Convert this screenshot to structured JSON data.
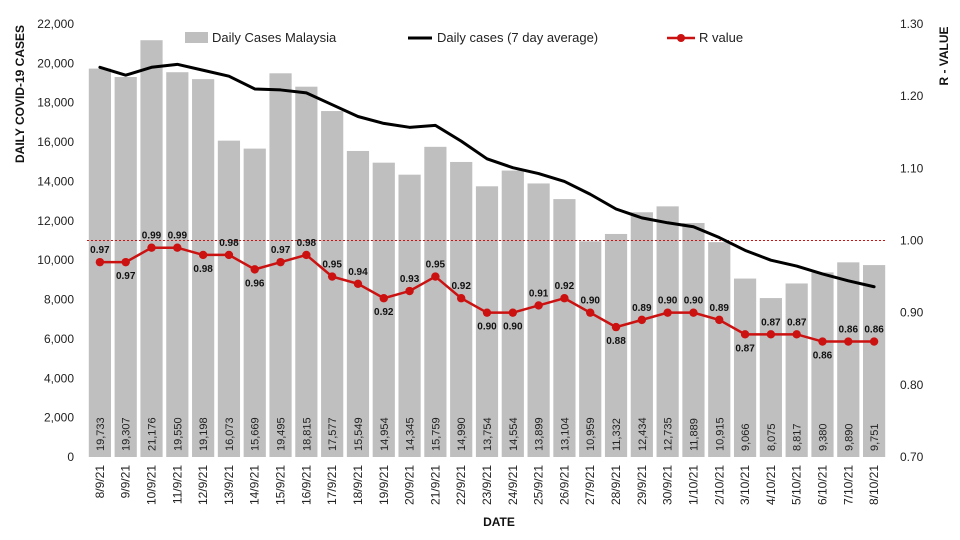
{
  "chart_data": {
    "type": "bar",
    "xlabel": "DATE",
    "ylabel": "DAILY COVID-19 CASES",
    "y2label": "R - VALUE",
    "ylim": [
      0,
      22000
    ],
    "y2lim": [
      0.7,
      1.3
    ],
    "y_ticks": [
      "0",
      "2,000",
      "4,000",
      "6,000",
      "8,000",
      "10,000",
      "12,000",
      "14,000",
      "16,000",
      "18,000",
      "20,000",
      "22,000"
    ],
    "y2_ticks": [
      "0.70",
      "0.80",
      "0.90",
      "1.00",
      "1.10",
      "1.20",
      "1.30"
    ],
    "reference_line": 1.0,
    "legend_position": "top",
    "categories": [
      "8/9/21",
      "9/9/21",
      "10/9/21",
      "11/9/21",
      "12/9/21",
      "13/9/21",
      "14/9/21",
      "15/9/21",
      "16/9/21",
      "17/9/21",
      "18/9/21",
      "19/9/21",
      "20/9/21",
      "21/9/21",
      "22/9/21",
      "23/9/21",
      "24/9/21",
      "25/9/21",
      "26/9/21",
      "27/9/21",
      "28/9/21",
      "29/9/21",
      "30/9/21",
      "1/10/21",
      "2/10/21",
      "3/10/21",
      "4/10/21",
      "5/10/21",
      "6/10/21",
      "7/10/21",
      "8/10/21"
    ],
    "series": [
      {
        "name": "Daily Cases Malaysia",
        "type": "bar",
        "axis": "left",
        "color": "#bfbfbf",
        "values": [
          19733,
          19307,
          21176,
          19550,
          19198,
          16073,
          15669,
          19495,
          18815,
          17577,
          15549,
          14954,
          14345,
          15759,
          14990,
          13754,
          14554,
          13899,
          13104,
          10959,
          11332,
          12434,
          12735,
          11889,
          10915,
          9066,
          8075,
          8817,
          9380,
          9890,
          9751
        ],
        "labels": [
          "19,733",
          "19,307",
          "21,176",
          "19,550",
          "19,198",
          "16,073",
          "15,669",
          "19,495",
          "18,815",
          "17,577",
          "15,549",
          "14,954",
          "14,345",
          "15,759",
          "14,990",
          "13,754",
          "14,554",
          "13,899",
          "13,104",
          "10,959",
          "11,332",
          "12,434",
          "12,735",
          "11,889",
          "10,915",
          "9,066",
          "8,075",
          "8,817",
          "9,380",
          "9,890",
          "9,751"
        ]
      },
      {
        "name": "Daily cases (7 day average)",
        "type": "line",
        "axis": "left",
        "color": "#000000",
        "values": [
          19800,
          19400,
          19800,
          19950,
          19650,
          19350,
          18700,
          18650,
          18500,
          17900,
          17300,
          16950,
          16750,
          16850,
          16050,
          15150,
          14700,
          14400,
          14000,
          13350,
          12600,
          12150,
          11900,
          11700,
          11150,
          10500,
          10000,
          9700,
          9300,
          8950,
          8650
        ]
      },
      {
        "name": "R value",
        "type": "line",
        "axis": "right",
        "color": "#cc1111",
        "values": [
          0.97,
          0.97,
          0.99,
          0.99,
          0.98,
          0.98,
          0.96,
          0.97,
          0.98,
          0.95,
          0.94,
          0.92,
          0.93,
          0.95,
          0.92,
          0.9,
          0.9,
          0.91,
          0.92,
          0.9,
          0.88,
          0.89,
          0.9,
          0.9,
          0.89,
          0.87,
          0.87,
          0.87,
          0.86,
          0.86,
          0.86
        ],
        "labels": [
          "0.97",
          "0.97",
          "0.99",
          "0.99",
          "0.98",
          "0.98",
          "0.96",
          "0.97",
          "0.98",
          "0.95",
          "0.94",
          "0.92",
          "0.93",
          "0.95",
          "0.92",
          "0.90",
          "0.90",
          "0.91",
          "0.92",
          "0.90",
          "0.88",
          "0.89",
          "0.90",
          "0.90",
          "0.89",
          "0.87",
          "0.87",
          "0.87",
          "0.86",
          "0.86",
          "0.86"
        ]
      }
    ]
  }
}
